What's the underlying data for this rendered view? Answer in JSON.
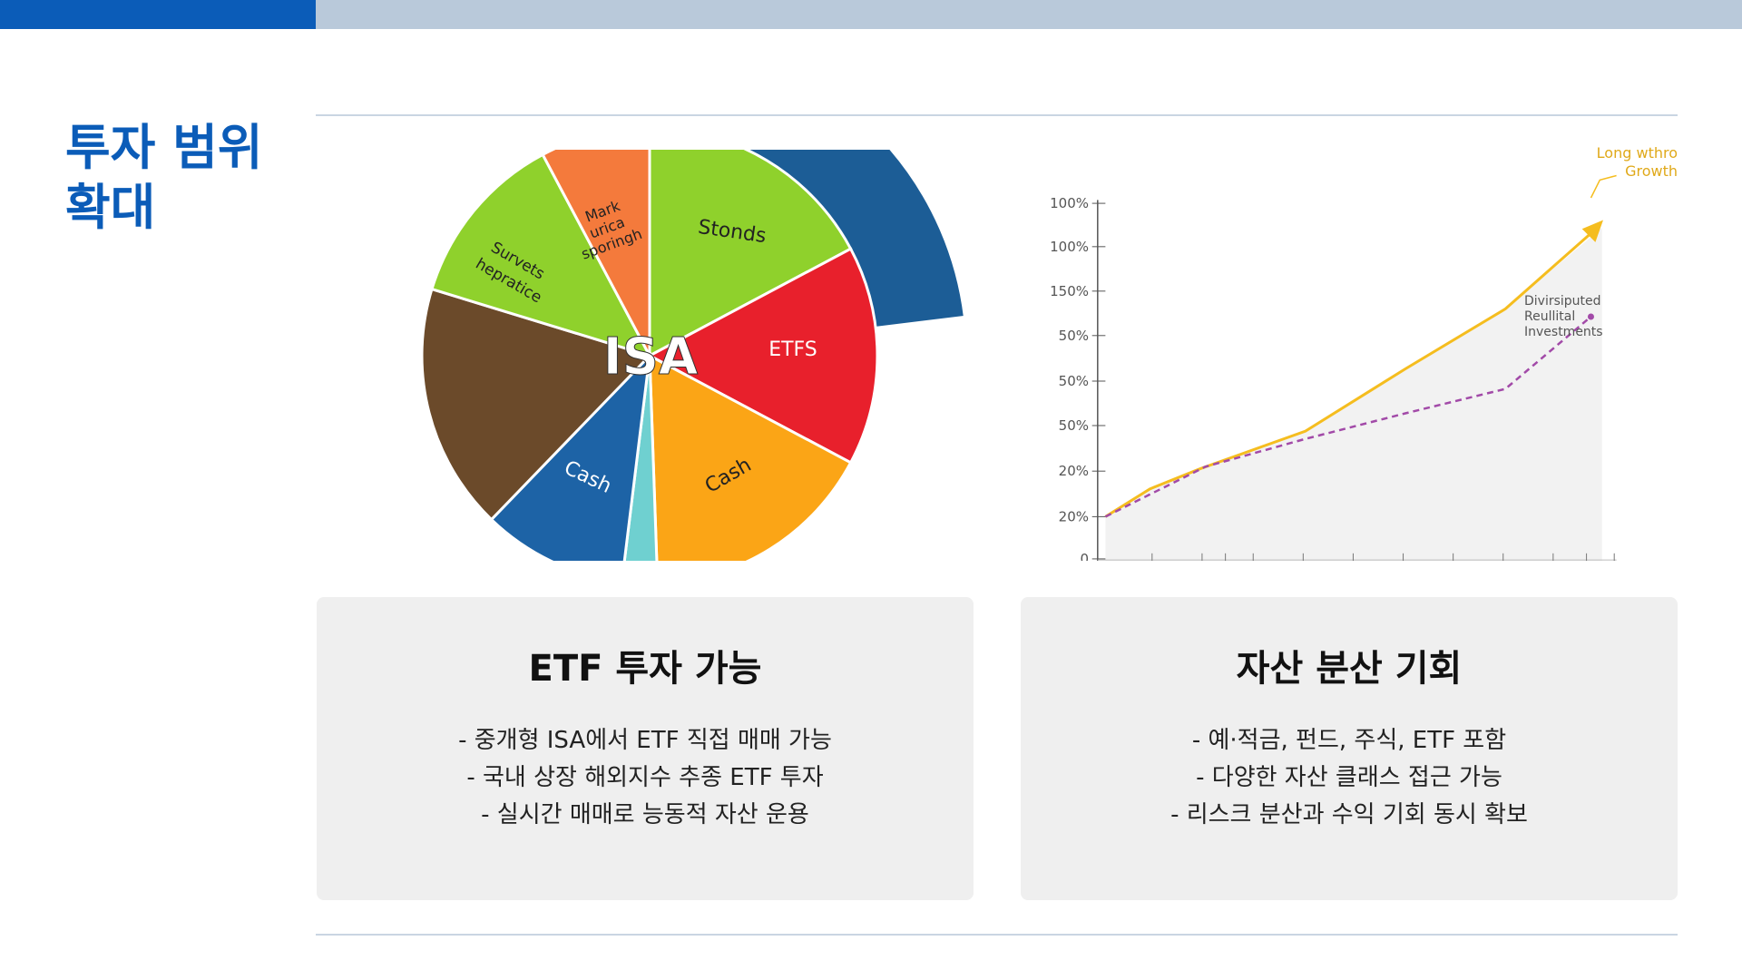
{
  "slide": {
    "title_lines": [
      "투자 범위",
      "확대"
    ],
    "pie_illustration": {
      "center_label": "ISA",
      "labels": [
        "Stonds",
        "ETFS",
        "Cash",
        "Cash",
        "Survets",
        "hepratice",
        "Mark",
        "urica",
        "sporingh"
      ]
    },
    "line_illustration": {
      "y_axis_labels": [
        "100%",
        "100%",
        "150%",
        "50%",
        "50%",
        "50%",
        "20%",
        "20%",
        "0"
      ],
      "annotation_growth": [
        "Long wthro",
        "Growth"
      ],
      "annotation_diversified": [
        "Divirsiputed",
        "Reullital",
        "Investments"
      ]
    },
    "cards": [
      {
        "title": "ETF 투자 가능",
        "bullets": [
          "- 중개형 ISA에서 ETF 직접 매매 가능",
          "- 국내 상장 해외지수 추종 ETF 투자",
          "- 실시간 매매로 능동적 자산 운용"
        ]
      },
      {
        "title": "자산 분산 기회",
        "bullets": [
          "- 예·적금, 펀드, 주식, ETF 포함",
          "- 다양한 자산 클래스 접근 가능",
          "- 리스크 분산과 수익 기회 동시 확보"
        ]
      }
    ]
  }
}
